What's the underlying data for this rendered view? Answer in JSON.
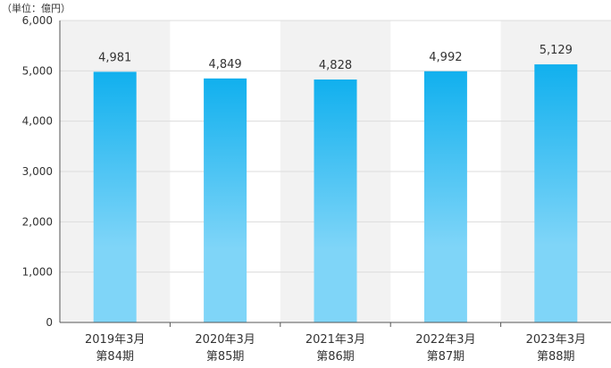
{
  "chart_data": {
    "type": "bar",
    "unit_label": "（単位：億円）",
    "categories": [
      [
        "2019年3月",
        "第84期"
      ],
      [
        "2020年3月",
        "第85期"
      ],
      [
        "2021年3月",
        "第86期"
      ],
      [
        "2022年3月",
        "第87期"
      ],
      [
        "2023年3月",
        "第88期"
      ]
    ],
    "values": [
      4981,
      4849,
      4828,
      4992,
      5129
    ],
    "value_labels": [
      "4,981",
      "4,849",
      "4,828",
      "4,992",
      "5,129"
    ],
    "ylim": [
      0,
      6000
    ],
    "yticks": [
      0,
      1000,
      2000,
      3000,
      4000,
      5000,
      6000
    ],
    "ytick_labels": [
      "0",
      "1,000",
      "2,000",
      "3,000",
      "4,000",
      "5,000",
      "6,000"
    ],
    "grid": true,
    "colors": {
      "bar_top": "#11b0ee",
      "bar_bottom": "#7fd5f8",
      "band": "#f2f2f2",
      "grid": "#dcdcdc",
      "axis": "#555555",
      "text": "#333333"
    }
  }
}
